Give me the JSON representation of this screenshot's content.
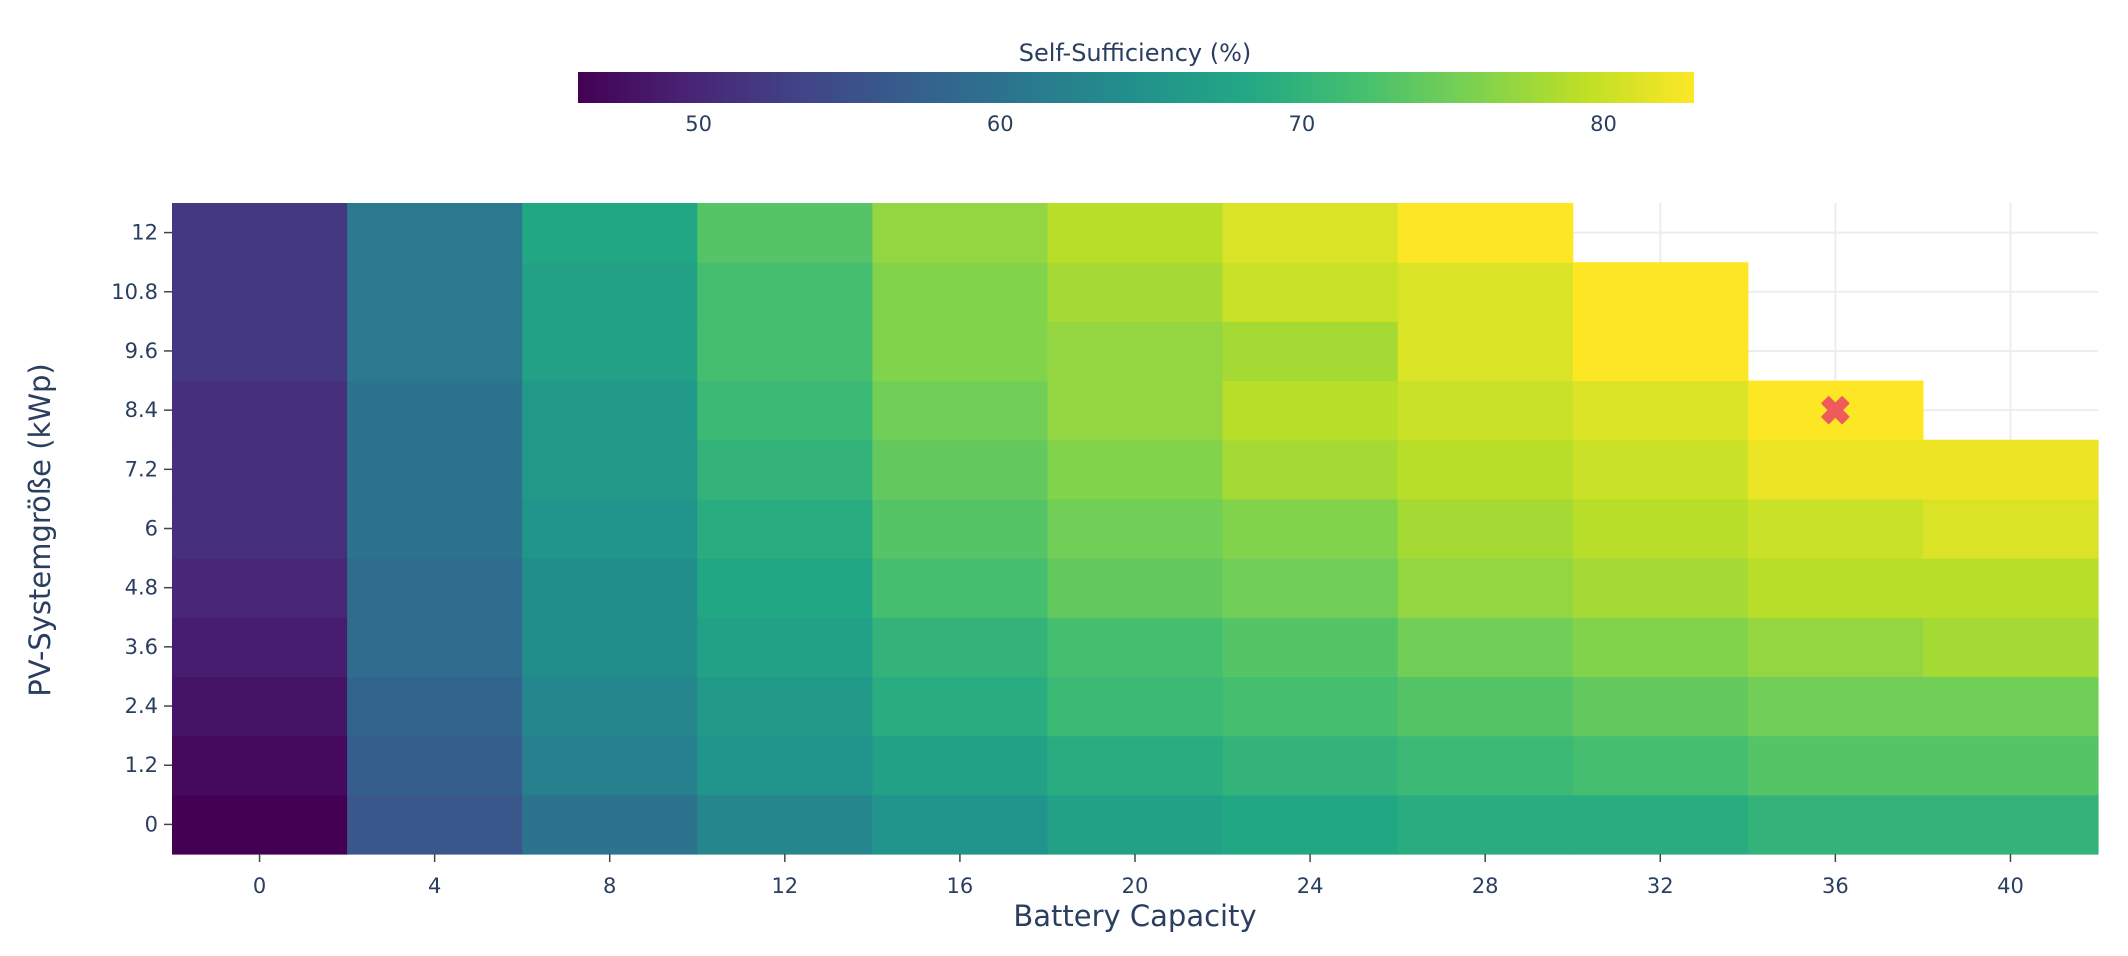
{
  "chart_data": {
    "type": "heatmap",
    "title": "",
    "xlabel": "Battery Capacity",
    "ylabel": "PV-Systemgröße (kWp)",
    "x": [
      0,
      4,
      8,
      12,
      16,
      20,
      24,
      28,
      32,
      36,
      40
    ],
    "y": [
      0,
      1.2,
      2.4,
      3.6,
      4.8,
      6,
      7.2,
      8.4,
      9.6,
      10.8,
      12
    ],
    "x_ticks": [
      "0",
      "4",
      "8",
      "12",
      "16",
      "20",
      "24",
      "28",
      "32",
      "36",
      "40"
    ],
    "y_ticks": [
      "0",
      "1.2",
      "2.4",
      "3.6",
      "4.8",
      "6",
      "7.2",
      "8.4",
      "9.6",
      "10.8",
      "12"
    ],
    "z": [
      [
        46,
        56,
        60,
        63,
        65,
        67,
        68,
        69,
        69,
        70,
        70
      ],
      [
        47,
        57,
        62,
        65,
        67,
        69,
        70,
        71,
        72,
        73,
        73
      ],
      [
        48,
        58,
        63,
        66,
        69,
        71,
        72,
        73,
        74,
        75,
        75
      ],
      [
        49,
        59,
        64,
        67,
        70,
        72,
        73,
        75,
        76,
        77,
        78
      ],
      [
        50,
        59,
        64,
        68,
        72,
        74,
        75,
        77,
        78,
        79,
        79
      ],
      [
        51,
        60,
        65,
        69,
        73,
        75,
        76,
        78,
        79,
        80,
        81
      ],
      [
        51,
        60,
        66,
        70,
        74,
        76,
        78,
        79,
        80,
        82,
        82
      ],
      [
        51,
        60,
        66,
        71,
        75,
        77,
        79,
        80,
        81,
        83,
        null
      ],
      [
        52,
        61,
        67,
        72,
        76,
        77,
        78,
        81,
        83,
        null,
        null
      ],
      [
        52,
        61,
        67,
        72,
        76,
        78,
        80,
        81,
        83,
        null,
        null
      ],
      [
        52,
        61,
        68,
        73,
        77,
        79,
        81,
        83,
        null,
        null,
        null
      ]
    ],
    "zlim": [
      46,
      83
    ],
    "colorscale": "Viridis",
    "colorbar": {
      "title": "Self-Sufficiency (%)",
      "ticks": [
        50,
        60,
        70,
        80
      ],
      "orientation": "horizontal",
      "placement": "top"
    },
    "marker": {
      "x": 36,
      "y": 8.4,
      "symbol": "x",
      "color": "#ef5a5a"
    },
    "grid": true,
    "empty_cell_color": "#ffffff",
    "grid_color": "#ebedf0"
  }
}
